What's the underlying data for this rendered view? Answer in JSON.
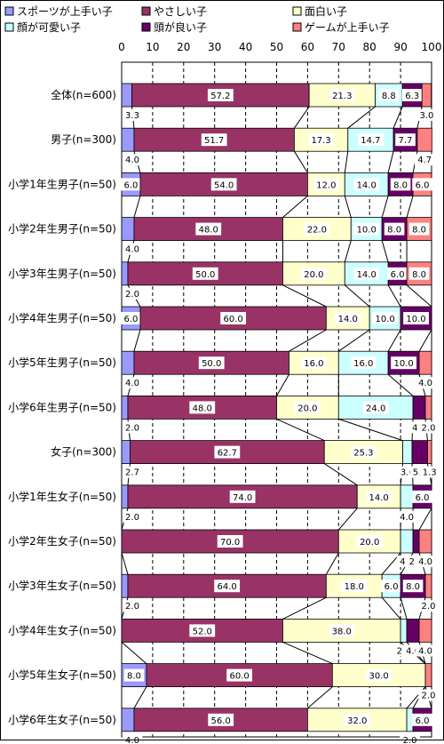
{
  "chart_data": {
    "type": "bar",
    "orientation": "horizontal",
    "stacked": true,
    "percent_stacked": true,
    "xlim": [
      0,
      100
    ],
    "x_ticks": [
      "0",
      "10",
      "20",
      "30",
      "40",
      "50",
      "60",
      "70",
      "80",
      "90",
      "100"
    ],
    "grid": true,
    "legend_position": "top",
    "categories": [
      "全体(n=600)",
      "男子(n=300)",
      "小学1年生男子(n=50)",
      "小学2年生男子(n=50)",
      "小学3年生男子(n=50)",
      "小学4年生男子(n=50)",
      "小学5年生男子(n=50)",
      "小学6年生男子(n=50)",
      "女子(n=300)",
      "小学1年生女子(n=50)",
      "小学2年生女子(n=50)",
      "小学3年生女子(n=50)",
      "小学4年生女子(n=50)",
      "小学5年生女子(n=50)",
      "小学6年生女子(n=50)"
    ],
    "series": [
      {
        "name": "スポーツが上手い子",
        "color": "#9999ff",
        "values": [
          3.3,
          4.0,
          6.0,
          4.0,
          2.0,
          6.0,
          4.0,
          2.0,
          2.7,
          2.0,
          0.0,
          2.0,
          0.0,
          8.0,
          4.0
        ]
      },
      {
        "name": "やさしい子",
        "color": "#993366",
        "values": [
          57.2,
          51.7,
          54.0,
          48.0,
          50.0,
          60.0,
          50.0,
          48.0,
          62.7,
          74.0,
          70.0,
          64.0,
          52.0,
          60.0,
          56.0
        ]
      },
      {
        "name": "面白い子",
        "color": "#ffffcc",
        "values": [
          21.3,
          17.3,
          12.0,
          22.0,
          20.0,
          14.0,
          16.0,
          20.0,
          25.3,
          14.0,
          20.0,
          18.0,
          38.0,
          30.0,
          32.0
        ]
      },
      {
        "name": "顔が可愛い子",
        "color": "#ccffff",
        "values": [
          8.8,
          14.7,
          14.0,
          10.0,
          14.0,
          10.0,
          16.0,
          24.0,
          3.0,
          4.0,
          4.0,
          6.0,
          2.0,
          0.0,
          2.0
        ]
      },
      {
        "name": "頭が良い子",
        "color": "#660066",
        "values": [
          6.3,
          7.7,
          8.0,
          8.0,
          6.0,
          10.0,
          10.0,
          4.0,
          5.0,
          6.0,
          2.0,
          8.0,
          4.0,
          0.0,
          6.0
        ]
      },
      {
        "name": "ゲームが上手い子",
        "color": "#ff8080",
        "values": [
          3.0,
          4.7,
          6.0,
          8.0,
          8.0,
          0.0,
          4.0,
          2.0,
          1.3,
          0.0,
          4.0,
          2.0,
          4.0,
          2.0,
          0.0
        ]
      }
    ],
    "segment_labels": [
      [
        "3.3",
        "57.2",
        "21.3",
        "8.8",
        "6.3",
        "3.0"
      ],
      [
        "4.0",
        "51.7",
        "17.3",
        "14.7",
        "7.7",
        "4.7"
      ],
      [
        "6.0",
        "54.0",
        "12.0",
        "14.0",
        "8.0",
        "6.0"
      ],
      [
        "4.0",
        "48.0",
        "22.0",
        "10.0",
        "8.0",
        "8.0"
      ],
      [
        "2.0",
        "50.0",
        "20.0",
        "14.0",
        "6.0",
        "8.0"
      ],
      [
        "6.0",
        "60.0",
        "14.0",
        "10.0",
        "10.0",
        ""
      ],
      [
        "4.0",
        "50.0",
        "16.0",
        "16.0",
        "10.0",
        "4.0"
      ],
      [
        "2.0",
        "48.0",
        "20.0",
        "24.0",
        "4.0",
        "2.0"
      ],
      [
        "2.7",
        "62.7",
        "25.3",
        "3.0",
        "5.0",
        "1.3"
      ],
      [
        "2.0",
        "74.0",
        "14.0",
        "4.0",
        "6.0",
        ""
      ],
      [
        "",
        "70.0",
        "20.0",
        "4.0",
        "2.0",
        "4.0"
      ],
      [
        "2.0",
        "64.0",
        "18.0",
        "6.0",
        "8.0",
        "2.0"
      ],
      [
        "",
        "52.0",
        "38.0",
        "2.0",
        "4.0",
        "4.0"
      ],
      [
        "8.0",
        "60.0",
        "30.0",
        "",
        "",
        "2.0"
      ],
      [
        "4.0",
        "56.0",
        "32.0",
        "2.0",
        "6.0",
        ""
      ]
    ]
  }
}
